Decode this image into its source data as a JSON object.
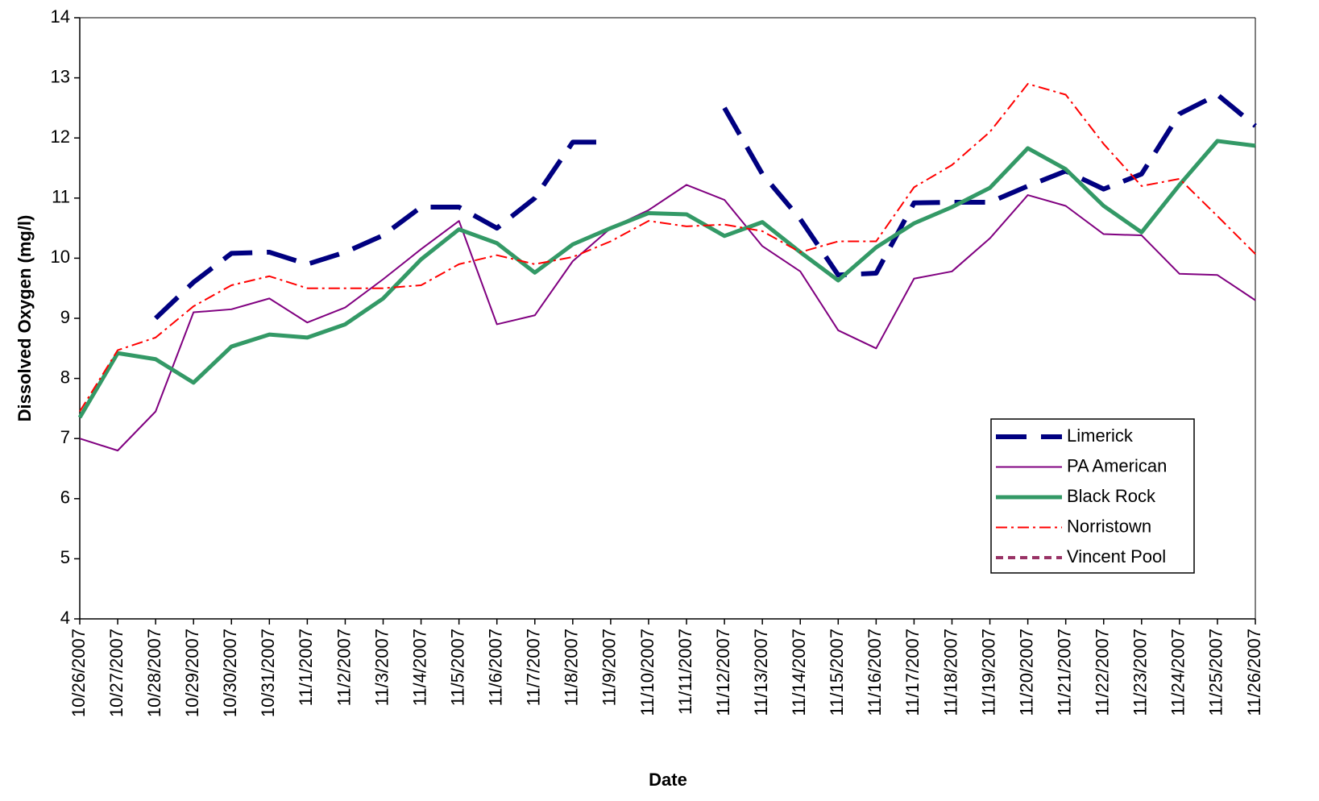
{
  "chart_data": {
    "type": "line",
    "xlabel": "Date",
    "ylabel": "Dissolved Oxygen (mg/l)",
    "categories": [
      "10/26/2007",
      "10/27/2007",
      "10/28/2007",
      "10/29/2007",
      "10/30/2007",
      "10/31/2007",
      "11/1/2007",
      "11/2/2007",
      "11/3/2007",
      "11/4/2007",
      "11/5/2007",
      "11/6/2007",
      "11/7/2007",
      "11/8/2007",
      "11/9/2007",
      "11/10/2007",
      "11/11/2007",
      "11/12/2007",
      "11/13/2007",
      "11/14/2007",
      "11/15/2007",
      "11/16/2007",
      "11/17/2007",
      "11/18/2007",
      "11/19/2007",
      "11/20/2007",
      "11/21/2007",
      "11/22/2007",
      "11/23/2007",
      "11/24/2007",
      "11/25/2007",
      "11/26/2007"
    ],
    "series": [
      {
        "name": "Limerick",
        "color": "#000080",
        "values": [
          null,
          null,
          9.0,
          9.6,
          10.08,
          10.1,
          9.9,
          10.1,
          10.38,
          10.85,
          10.85,
          10.5,
          11.0,
          11.93,
          11.93,
          null,
          null,
          12.5,
          11.4,
          10.65,
          9.72,
          9.75,
          10.92,
          10.93,
          10.93,
          11.2,
          11.45,
          11.15,
          11.4,
          12.4,
          12.72,
          12.2
        ]
      },
      {
        "name": "PA American",
        "color": "#800080",
        "values": [
          7.0,
          6.8,
          7.45,
          9.1,
          9.15,
          9.33,
          8.93,
          9.18,
          9.65,
          10.15,
          10.62,
          8.9,
          9.05,
          9.95,
          10.5,
          10.8,
          11.22,
          10.97,
          10.2,
          9.78,
          8.8,
          8.5,
          9.66,
          9.78,
          10.33,
          11.05,
          10.87,
          10.4,
          10.38,
          9.74,
          9.72,
          9.3
        ]
      },
      {
        "name": "Black Rock",
        "color": "#339966",
        "values": [
          7.35,
          8.42,
          8.32,
          7.93,
          8.53,
          8.73,
          8.68,
          8.9,
          9.33,
          9.98,
          10.48,
          10.25,
          9.76,
          10.23,
          10.5,
          10.75,
          10.73,
          10.37,
          10.6,
          10.1,
          9.63,
          10.18,
          10.58,
          10.85,
          11.17,
          11.83,
          11.48,
          10.87,
          10.43,
          11.22,
          11.95,
          11.87
        ]
      },
      {
        "name": "Norristown",
        "color": "#ff0000",
        "values": [
          7.45,
          8.47,
          8.68,
          9.2,
          9.55,
          9.7,
          9.5,
          9.5,
          9.5,
          9.55,
          9.9,
          10.05,
          9.9,
          10.02,
          10.28,
          10.62,
          10.53,
          10.56,
          10.45,
          10.1,
          10.28,
          10.28,
          11.18,
          11.55,
          12.1,
          12.9,
          12.72,
          11.9,
          11.2,
          11.32,
          10.7,
          10.07
        ]
      },
      {
        "name": "Vincent Pool",
        "color": "#993366",
        "values": [
          null,
          null,
          null,
          null,
          null,
          null,
          null,
          null,
          null,
          null,
          null,
          null,
          null,
          null,
          null,
          null,
          null,
          null,
          null,
          null,
          null,
          null,
          null,
          null,
          null,
          null,
          null,
          null,
          null,
          null,
          null,
          null
        ]
      }
    ],
    "ylim": [
      4,
      14
    ],
    "yticks": [
      4,
      5,
      6,
      7,
      8,
      9,
      10,
      11,
      12,
      13,
      14
    ]
  }
}
